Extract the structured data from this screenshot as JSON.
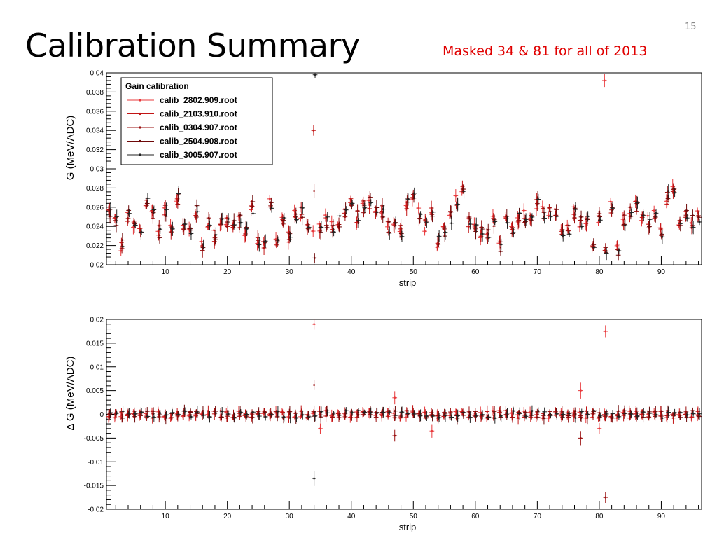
{
  "slide": {
    "title": "Calibration Summary",
    "page_number": "15",
    "note": "Masked 34 & 81 for all of 2013"
  },
  "colors": {
    "series": [
      "#e8383b",
      "#c21515",
      "#9a0f0f",
      "#6e0808",
      "#222222"
    ],
    "axis": "#000000",
    "note": "#e00000"
  },
  "chart_data": [
    {
      "type": "scatter",
      "xlabel": "strip",
      "ylabel": "G (MeV/ADC)",
      "xlim": [
        1,
        96
      ],
      "ylim": [
        0.02,
        0.04
      ],
      "xticks": [
        10,
        20,
        30,
        40,
        50,
        60,
        70,
        80,
        90
      ],
      "yticks": [
        0.02,
        0.022,
        0.024,
        0.026,
        0.028,
        0.03,
        0.032,
        0.034,
        0.036,
        0.038,
        0.04
      ],
      "ytick_labels": [
        "0.02",
        "0.022",
        "0.024",
        "0.026",
        "0.028",
        "0.03",
        "0.032",
        "0.034",
        "0.036",
        "0.038",
        "0.04"
      ],
      "legend": {
        "title": "Gain calibration",
        "position": "top-left",
        "entries": [
          "calib_2802.909.root",
          "calib_2103.910.root",
          "calib_0304.907.root",
          "calib_2504.908.root",
          "calib_3005.907.root"
        ]
      },
      "x": [
        1,
        2,
        3,
        4,
        5,
        6,
        7,
        8,
        9,
        10,
        11,
        12,
        13,
        14,
        15,
        16,
        17,
        18,
        19,
        20,
        21,
        22,
        23,
        24,
        25,
        26,
        27,
        28,
        29,
        30,
        31,
        32,
        33,
        34,
        35,
        36,
        37,
        38,
        39,
        40,
        41,
        42,
        43,
        44,
        45,
        46,
        47,
        48,
        49,
        50,
        51,
        52,
        53,
        54,
        55,
        56,
        57,
        58,
        59,
        60,
        61,
        62,
        63,
        64,
        65,
        66,
        67,
        68,
        69,
        70,
        71,
        72,
        73,
        74,
        75,
        76,
        77,
        78,
        79,
        80,
        81,
        82,
        83,
        84,
        85,
        86,
        87,
        88,
        89,
        90,
        91,
        92,
        93,
        94,
        95,
        96
      ],
      "baseline": [
        0.0255,
        0.0245,
        0.022,
        0.025,
        0.024,
        0.0235,
        0.0265,
        0.0255,
        0.0235,
        0.0255,
        0.024,
        0.027,
        0.024,
        0.0235,
        0.0255,
        0.022,
        0.0245,
        0.023,
        0.0245,
        0.0245,
        0.024,
        0.0245,
        0.0235,
        0.026,
        0.0225,
        0.022,
        0.0265,
        0.0225,
        0.0245,
        0.023,
        0.025,
        0.0255,
        0.0235,
        0.021,
        0.024,
        0.0245,
        0.024,
        0.0245,
        0.0255,
        0.0265,
        0.025,
        0.026,
        0.0265,
        0.0255,
        0.0255,
        0.024,
        0.0245,
        0.0235,
        0.0265,
        0.0275,
        0.0255,
        0.024,
        0.0255,
        0.0225,
        0.0235,
        0.025,
        0.0265,
        0.028,
        0.0245,
        0.0235,
        0.0235,
        0.023,
        0.0245,
        0.022,
        0.025,
        0.0235,
        0.025,
        0.025,
        0.025,
        0.0265,
        0.0255,
        0.0255,
        0.0255,
        0.0235,
        0.0235,
        0.0255,
        0.0245,
        0.0245,
        0.0225,
        0.025,
        0.0215,
        0.026,
        0.0215,
        0.0245,
        0.0255,
        0.026,
        0.025,
        0.0245,
        0.0255,
        0.0235,
        0.027,
        0.0275,
        0.024,
        0.025,
        0.0245,
        0.025
      ],
      "masked_strips": {
        "34": [
          0.0235,
          0.034,
          0.0277,
          0.0207,
          0.0398
        ],
        "81": [
          0.0392,
          0.0215,
          0.0218,
          0.0213,
          0.0212
        ]
      }
    },
    {
      "type": "scatter",
      "xlabel": "strip",
      "ylabel": "Δ G (MeV/ADC)",
      "xlim": [
        1,
        96
      ],
      "ylim": [
        -0.02,
        0.02
      ],
      "xticks": [
        10,
        20,
        30,
        40,
        50,
        60,
        70,
        80,
        90
      ],
      "yticks": [
        -0.02,
        -0.015,
        -0.01,
        -0.005,
        0,
        0.005,
        0.01,
        0.015,
        0.02
      ],
      "ytick_labels": [
        "-0.02",
        "-0.015",
        "-0.01",
        "-0.005",
        "0",
        "0.005",
        "0.01",
        "0.015",
        "0.02"
      ],
      "outliers": [
        {
          "x": 34,
          "values": [
            0.019,
            0.0062,
            -0.0135
          ]
        },
        {
          "x": 35,
          "values": [
            -0.003
          ]
        },
        {
          "x": 47,
          "values": [
            0.0035,
            -0.0045
          ]
        },
        {
          "x": 53,
          "values": [
            -0.0035
          ]
        },
        {
          "x": 77,
          "values": [
            0.005,
            -0.005
          ]
        },
        {
          "x": 80,
          "values": [
            -0.003
          ]
        },
        {
          "x": 81,
          "values": [
            0.0175,
            -0.0175
          ]
        }
      ]
    }
  ]
}
